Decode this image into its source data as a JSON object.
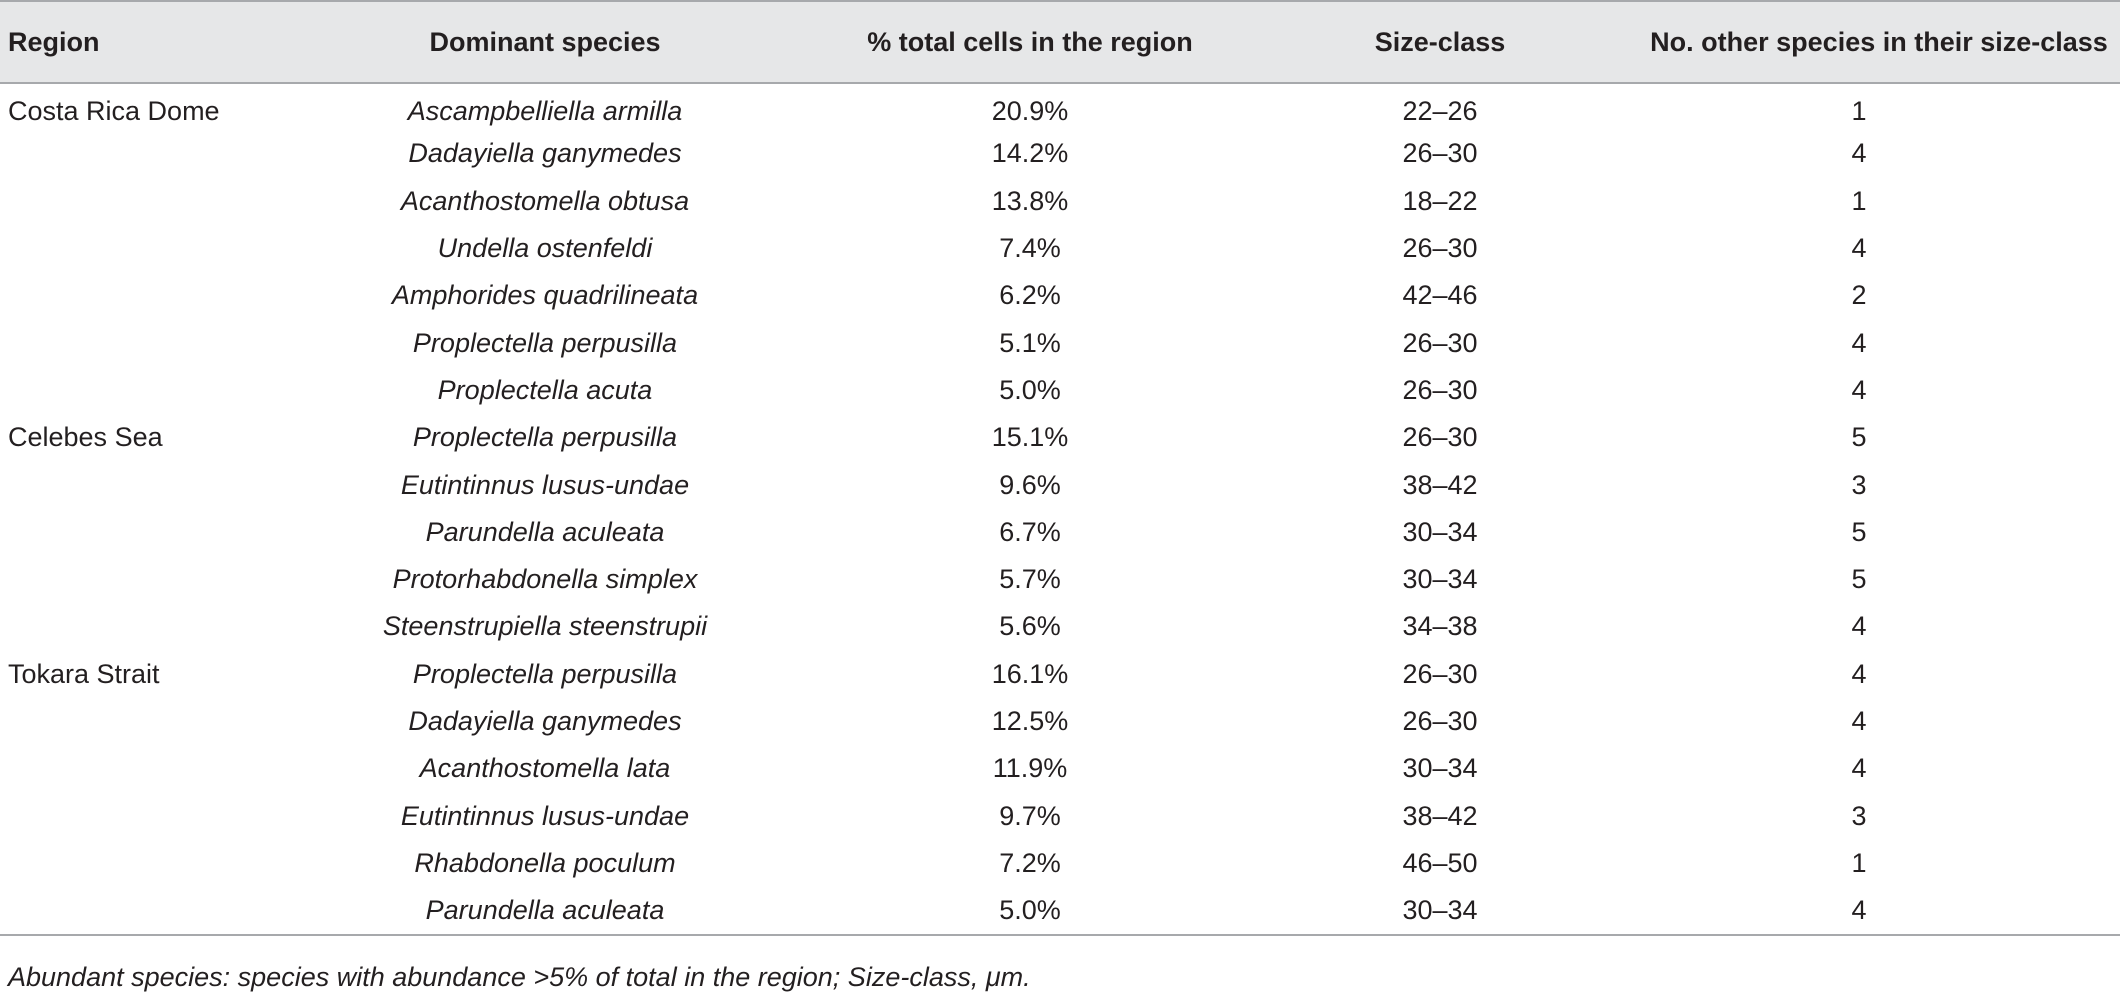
{
  "table": {
    "headers": [
      "Region",
      "Dominant species",
      "% total cells in the region",
      "Size-class",
      "No. other species in their size-class"
    ],
    "rows": [
      {
        "region": "Costa Rica Dome",
        "species": "Ascampbelliella armilla",
        "pct": "20.9%",
        "size": "22–26",
        "other": "1"
      },
      {
        "region": "",
        "species": "Dadayiella ganymedes",
        "pct": "14.2%",
        "size": "26–30",
        "other": "4"
      },
      {
        "region": "",
        "species": "Acanthostomella obtusa",
        "pct": "13.8%",
        "size": "18–22",
        "other": "1"
      },
      {
        "region": "",
        "species": "Undella ostenfeldi",
        "pct": "7.4%",
        "size": "26–30",
        "other": "4"
      },
      {
        "region": "",
        "species": "Amphorides quadrilineata",
        "pct": "6.2%",
        "size": "42–46",
        "other": "2"
      },
      {
        "region": "",
        "species": "Proplectella perpusilla",
        "pct": "5.1%",
        "size": "26–30",
        "other": "4"
      },
      {
        "region": "",
        "species": "Proplectella acuta",
        "pct": "5.0%",
        "size": "26–30",
        "other": "4"
      },
      {
        "region": "Celebes Sea",
        "species": "Proplectella perpusilla",
        "pct": "15.1%",
        "size": "26–30",
        "other": "5"
      },
      {
        "region": "",
        "species": "Eutintinnus lusus-undae",
        "pct": "9.6%",
        "size": "38–42",
        "other": "3"
      },
      {
        "region": "",
        "species": "Parundella aculeata",
        "pct": "6.7%",
        "size": "30–34",
        "other": "5"
      },
      {
        "region": "",
        "species": "Protorhabdonella simplex",
        "pct": "5.7%",
        "size": "30–34",
        "other": "5"
      },
      {
        "region": "",
        "species": "Steenstrupiella steenstrupii",
        "pct": "5.6%",
        "size": "34–38",
        "other": "4"
      },
      {
        "region": "Tokara Strait",
        "species": "Proplectella perpusilla",
        "pct": "16.1%",
        "size": "26–30",
        "other": "4"
      },
      {
        "region": "",
        "species": "Dadayiella ganymedes",
        "pct": "12.5%",
        "size": "26–30",
        "other": "4"
      },
      {
        "region": "",
        "species": "Acanthostomella lata",
        "pct": "11.9%",
        "size": "30–34",
        "other": "4"
      },
      {
        "region": "",
        "species": "Eutintinnus lusus-undae",
        "pct": "9.7%",
        "size": "38–42",
        "other": "3"
      },
      {
        "region": "",
        "species": "Rhabdonella poculum",
        "pct": "7.2%",
        "size": "46–50",
        "other": "1"
      },
      {
        "region": "",
        "species": "Parundella aculeata",
        "pct": "5.0%",
        "size": "30–34",
        "other": "4"
      }
    ]
  },
  "footnote": "Abundant species: species with abundance >5% of total in the region; Size-class, μm."
}
